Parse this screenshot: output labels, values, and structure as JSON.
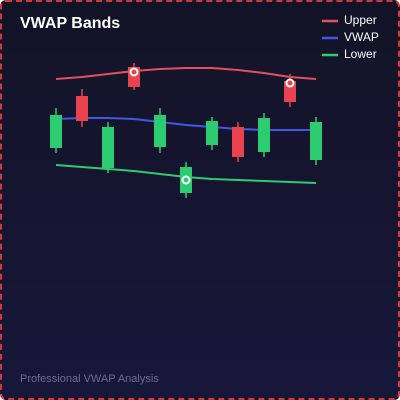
{
  "chart_data": {
    "type": "candlestick",
    "title": "VWAP Bands",
    "subtitle": "Professional VWAP Analysis",
    "ylim": [
      0,
      400
    ],
    "candles": {
      "open": [
        252,
        304,
        232,
        333,
        253,
        207,
        255,
        273,
        248,
        319,
        240
      ],
      "high": [
        292,
        311,
        278,
        337,
        292,
        238,
        283,
        278,
        287,
        326,
        283
      ],
      "low": [
        247,
        273,
        227,
        310,
        247,
        202,
        250,
        238,
        243,
        293,
        235
      ],
      "close": [
        285,
        279,
        273,
        313,
        285,
        233,
        279,
        243,
        282,
        298,
        278
      ],
      "up_color": "#2ecc71",
      "down_color": "#e8434f"
    },
    "series": [
      {
        "name": "Upper",
        "color": "#e2505f",
        "values": [
          321,
          323,
          326,
          329,
          331,
          332,
          332,
          330,
          327,
          323,
          321
        ]
      },
      {
        "name": "VWAP",
        "color": "#4256e8",
        "values": [
          281,
          282,
          282,
          281,
          278,
          275,
          273,
          271,
          270,
          270,
          270
        ]
      },
      {
        "name": "Lower",
        "color": "#2ecc71",
        "values": [
          235,
          233,
          231,
          229,
          226,
          223,
          221,
          220,
          219,
          218,
          217
        ]
      }
    ],
    "markers": {
      "indices": [
        3,
        5,
        9
      ],
      "values": [
        328,
        220,
        317
      ]
    },
    "legend": "top-right"
  }
}
